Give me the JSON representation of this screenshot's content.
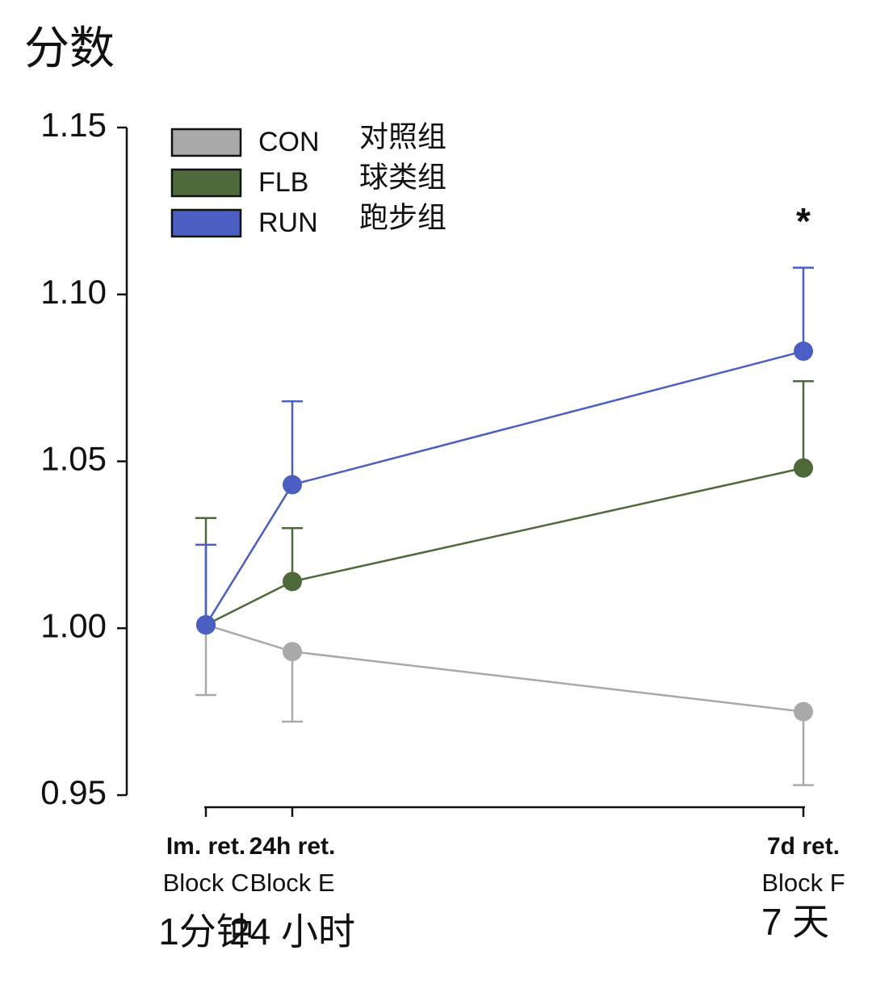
{
  "chart_data": {
    "type": "line",
    "title": "分数",
    "categories": [
      "Im. ret.",
      "24h ret.",
      "7d ret."
    ],
    "category_sublabels": [
      "Block C",
      "Block E",
      "Block F"
    ],
    "category_translations": [
      "1分钟",
      "24 小时",
      "7 天"
    ],
    "series": [
      {
        "name": "CON",
        "translation": "对照组",
        "color": "#a9a9a9",
        "values": [
          1.001,
          0.993,
          0.975
        ],
        "errors": [
          0.021,
          0.021,
          0.022
        ],
        "error_direction": "down"
      },
      {
        "name": "FLB",
        "translation": "球类组",
        "color": "#4f6a3a",
        "values": [
          1.001,
          1.014,
          1.048
        ],
        "errors": [
          0.032,
          0.016,
          0.026
        ],
        "error_direction": "up"
      },
      {
        "name": "RUN",
        "translation": "跑步组",
        "color": "#4a5fc1",
        "values": [
          1.001,
          1.043,
          1.083
        ],
        "errors": [
          0.024,
          0.025,
          0.025
        ],
        "error_direction": "up"
      }
    ],
    "annotations": [
      {
        "text": "*",
        "category": 2
      }
    ],
    "ylim": [
      0.95,
      1.15
    ],
    "yticks": [
      0.95,
      {
        "value": 1.0,
        "label": "1.00"
      },
      {
        "value": 1.05,
        "label": "1.05"
      },
      {
        "value": 1.1,
        "label": "1.10"
      },
      1.15
    ],
    "legend": "upper left"
  }
}
